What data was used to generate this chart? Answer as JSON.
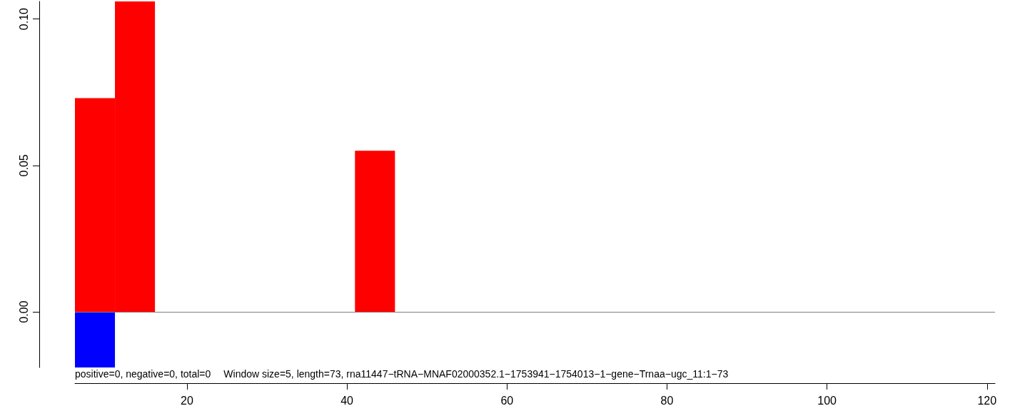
{
  "chart_data": {
    "type": "histogram",
    "bins": [
      6,
      11,
      16,
      21,
      26,
      31,
      36,
      41,
      46
    ],
    "series": [
      {
        "color": "#ff0000",
        "values": [
          0.073,
          0.106,
          0,
          0,
          0,
          0,
          0,
          0.055
        ]
      },
      {
        "color": "#0000ff",
        "values": [
          -0.019,
          0,
          0,
          0,
          0,
          0,
          0,
          0
        ]
      }
    ],
    "xlim": [
      6,
      121
    ],
    "xticks": [
      20,
      40,
      60,
      80,
      100,
      120
    ],
    "ylim": [
      -0.019,
      0.106
    ],
    "yticks": [
      {
        "value": 0,
        "label": "0.00"
      },
      {
        "value": 0.05,
        "label": "0.05"
      },
      {
        "value": 0.1,
        "label": "0.10"
      }
    ],
    "ref_lines": [
      {
        "axis": "y",
        "value": 0,
        "color": "#808080"
      }
    ],
    "annotations": [
      "positive=0, negative=0, total=0",
      "Window size=5, length=73, rna11447−tRNA−MNAF02000352.1−1753941−1754013−1−gene−Trnaa−ugc_11:1−73"
    ],
    "grid": false
  }
}
